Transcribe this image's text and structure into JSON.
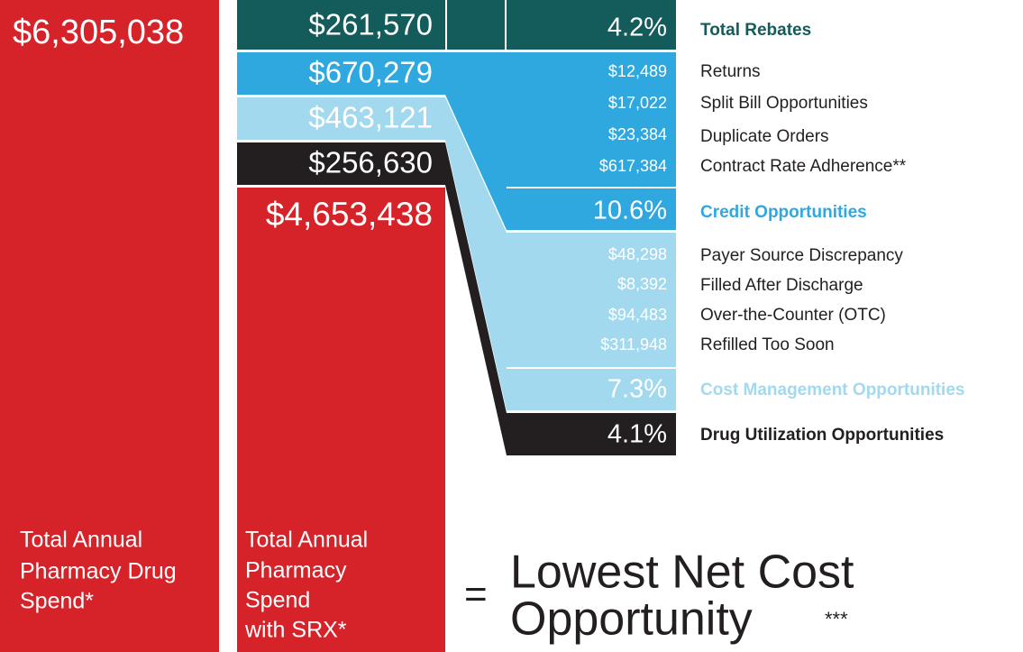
{
  "total_spend": {
    "amount": "$6,305,038",
    "label": [
      "Total Annual",
      "Pharmacy Drug",
      "Spend*"
    ]
  },
  "srx": {
    "segments": [
      "$261,570",
      "$670,279",
      "$463,121",
      "$256,630"
    ],
    "amount": "$4,653,438",
    "label": [
      "Total Annual",
      "Pharmacy",
      "Spend",
      "with SRX*"
    ]
  },
  "groups": [
    {
      "percent": "4.2%",
      "title": "Total Rebates",
      "items": []
    },
    {
      "percent": "10.6%",
      "title": "Credit Opportunities",
      "items": [
        {
          "value": "$12,489",
          "label": "Returns"
        },
        {
          "value": "$17,022",
          "label": "Split Bill Opportunities"
        },
        {
          "value": "$23,384",
          "label": "Duplicate Orders"
        },
        {
          "value": "$617,384",
          "label": "Contract Rate Adherence**"
        }
      ]
    },
    {
      "percent": "7.3%",
      "title": "Cost Management Opportunities",
      "items": [
        {
          "value": "$48,298",
          "label": "Payer Source Discrepancy"
        },
        {
          "value": "$8,392",
          "label": "Filled After Discharge"
        },
        {
          "value": "$94,483",
          "label": "Over-the-Counter (OTC)"
        },
        {
          "value": "$311,948",
          "label": "Refilled Too Soon"
        }
      ]
    },
    {
      "percent": "4.1%",
      "title": "Drug Utilization Opportunities",
      "items": []
    }
  ],
  "result": {
    "equals": "=",
    "lines": [
      "Lowest Net Cost",
      "Opportunity"
    ],
    "note": "***"
  }
}
